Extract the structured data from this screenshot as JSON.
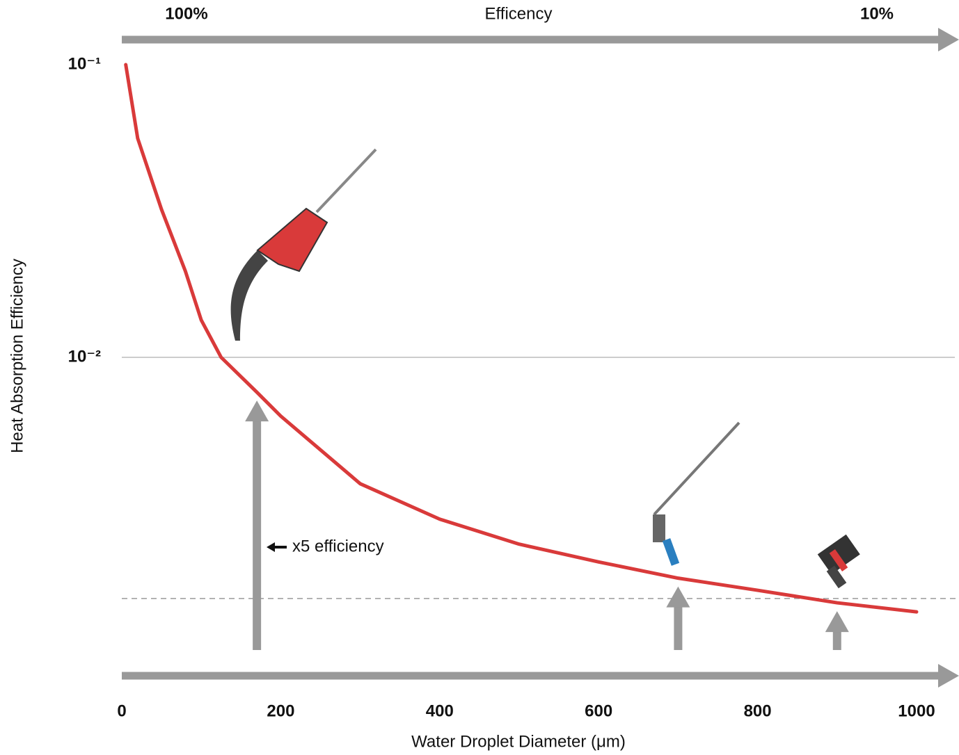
{
  "chart_data": {
    "type": "line",
    "top_left_label": "100%",
    "top_title": "Efficency",
    "top_right_label": "10%",
    "ylabel": "Heat Absorption Efficiency",
    "xlabel": "Water Droplet Diameter (μm)",
    "annotation": "x5 efficiency",
    "log_y": true,
    "x": [
      5,
      20,
      50,
      80,
      100,
      125,
      170,
      200,
      300,
      400,
      500,
      600,
      700,
      800,
      900,
      1000
    ],
    "series": [
      {
        "color": "#d93a3a",
        "values": [
          0.1,
          0.056,
          0.032,
          0.0197,
          0.0134,
          0.01,
          0.0076,
          0.0063,
          0.0037,
          0.0028,
          0.0023,
          0.002,
          0.00176,
          0.0016,
          0.00145,
          0.00135
        ]
      }
    ],
    "reference_line": 0.0015,
    "arrows_x": [
      170,
      700,
      900
    ],
    "xlim": [
      0,
      1000
    ],
    "xticks": [
      0,
      200,
      400,
      600,
      800,
      1000
    ],
    "ylim": [
      0.001,
      0.1
    ],
    "yticks": [
      {
        "value": 0.1,
        "label": "10⁻¹"
      },
      {
        "value": 0.01,
        "label": "10⁻²"
      }
    ]
  }
}
